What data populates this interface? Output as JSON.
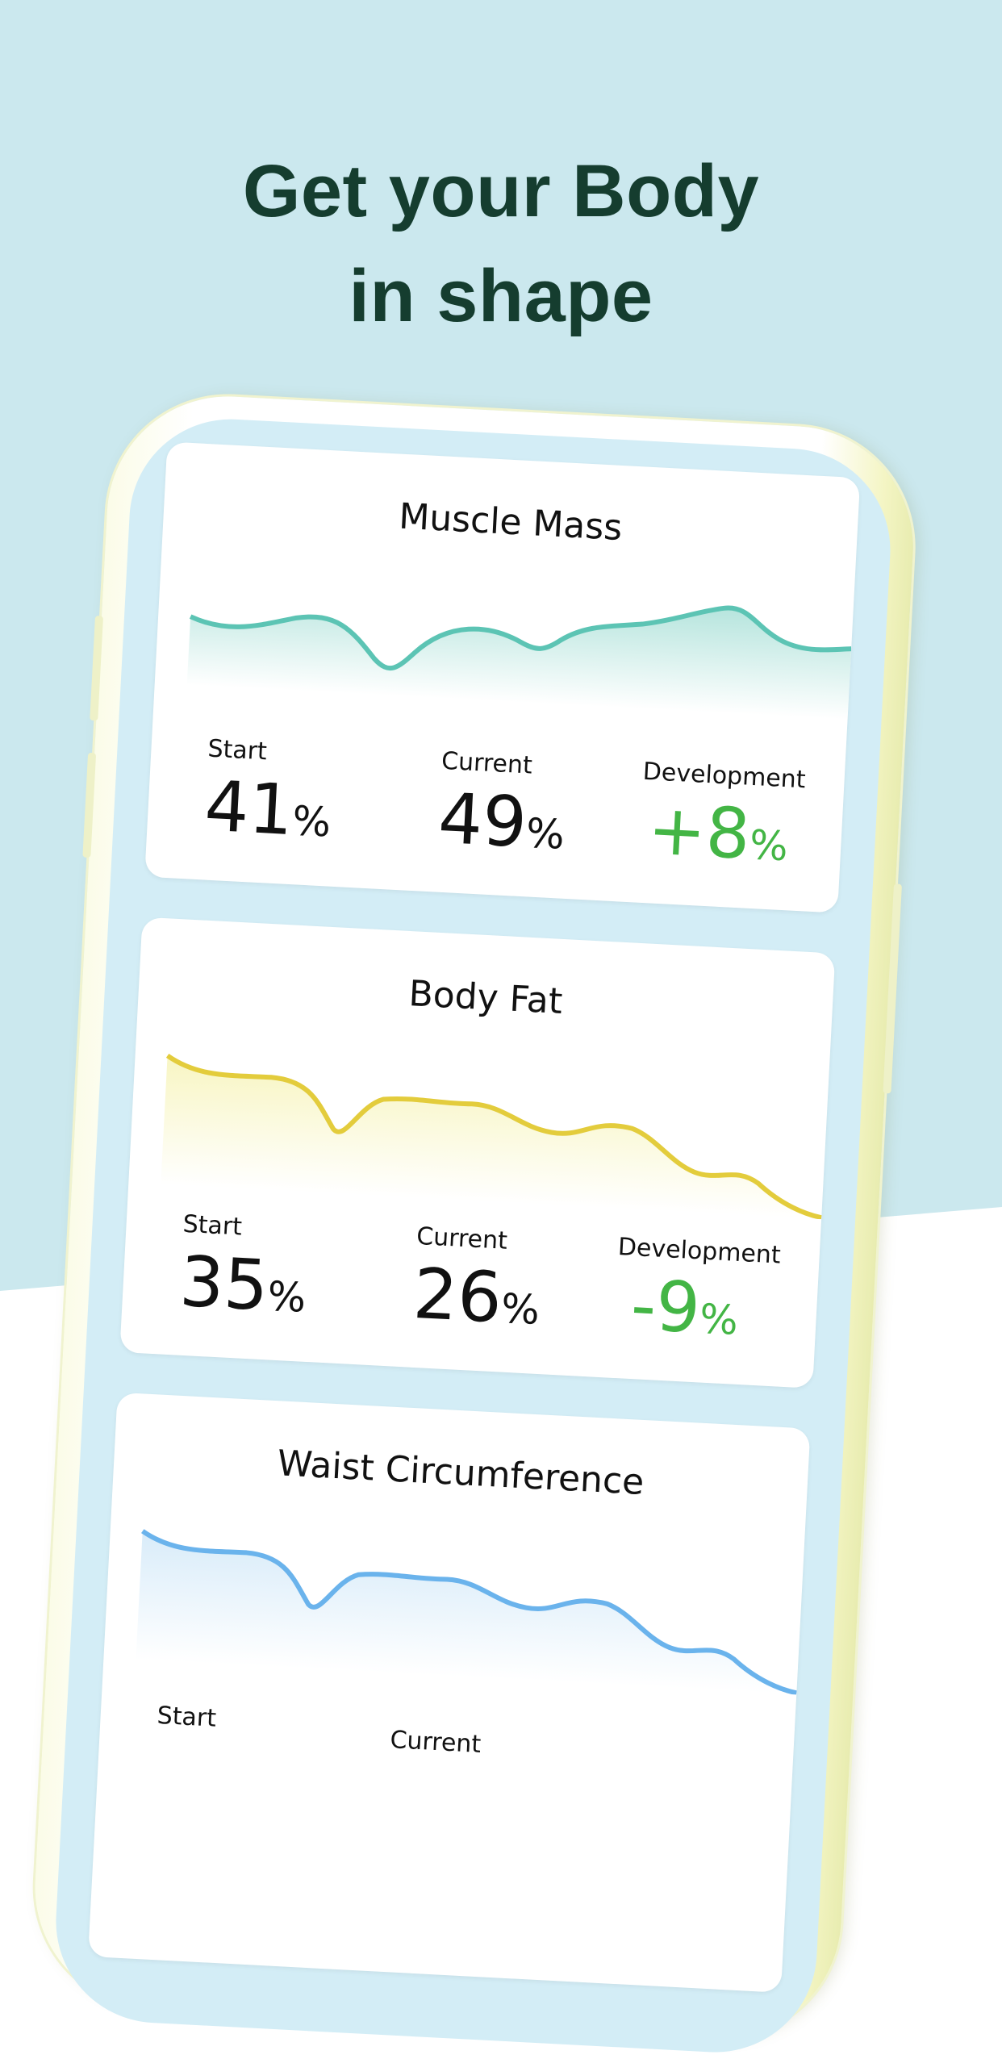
{
  "headline": {
    "line1": "Get your Body",
    "line2": "in shape"
  },
  "colors": {
    "background_top": "#cbe8ee",
    "headline": "#153d2f",
    "screen": "#d3edf6",
    "positive": "#43b545"
  },
  "cards": [
    {
      "title": "Muscle Mass",
      "color": "#5cc4b4",
      "start_label": "Start",
      "start_value": "41",
      "start_unit": "%",
      "current_label": "Current",
      "current_value": "49",
      "current_unit": "%",
      "development_label": "Development",
      "development_value": "+8",
      "development_unit": "%"
    },
    {
      "title": "Body Fat",
      "color": "#e3cc3c",
      "start_label": "Start",
      "start_value": "35",
      "start_unit": "%",
      "current_label": "Current",
      "current_value": "26",
      "current_unit": "%",
      "development_label": "Development",
      "development_value": "-9",
      "development_unit": "%"
    },
    {
      "title": "Waist Circumference",
      "color": "#6ab3ec",
      "start_label": "Start",
      "current_label": "Current"
    }
  ]
}
